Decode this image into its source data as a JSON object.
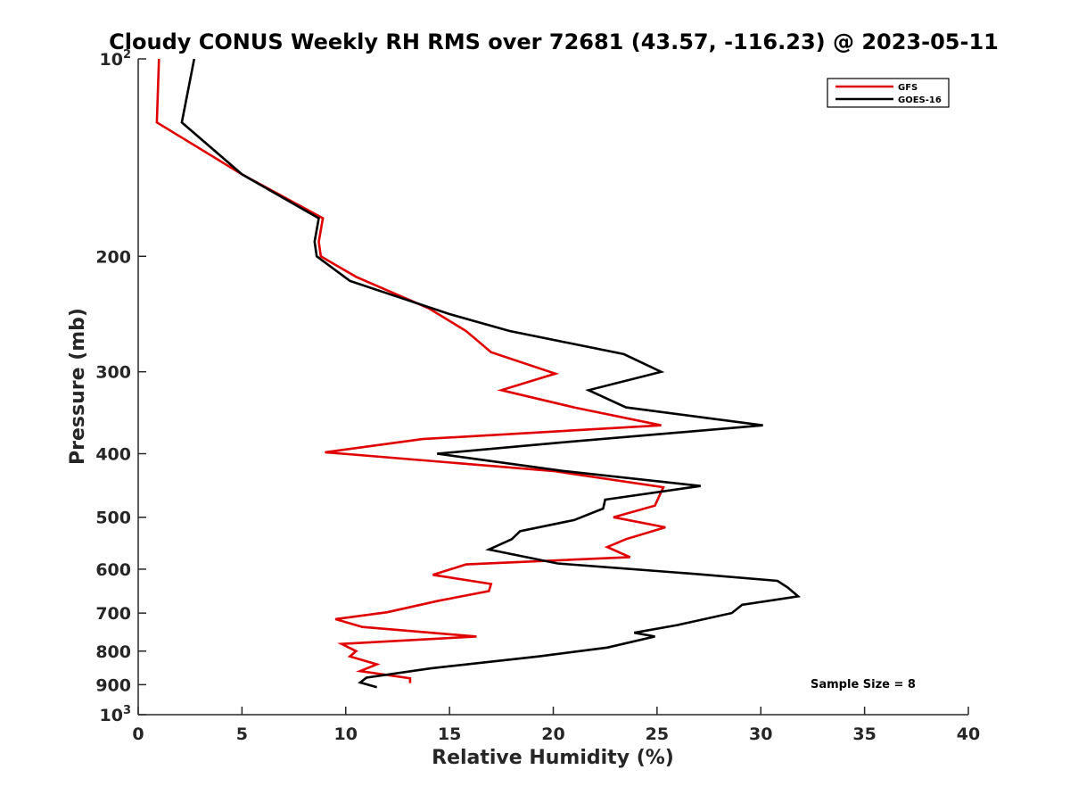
{
  "chart_data": {
    "type": "line",
    "title": "Cloudy CONUS Weekly RH RMS over 72681 (43.57, -116.23) @ 2023-05-11",
    "xlabel": "Relative Humidity (%)",
    "ylabel": "Pressure (mb)",
    "xlim": [
      0,
      40
    ],
    "ylim": [
      100,
      1000
    ],
    "y_scale": "log",
    "y_reversed": true,
    "grid": false,
    "legend_position": "top-right",
    "x_ticks": [
      "0",
      "5",
      "10",
      "15",
      "20",
      "25",
      "30",
      "35",
      "40"
    ],
    "y_ticks": [
      {
        "value": 100,
        "base": "10",
        "exp": "2"
      },
      {
        "value": 200,
        "base": "200",
        "exp": ""
      },
      {
        "value": 300,
        "base": "300",
        "exp": ""
      },
      {
        "value": 400,
        "base": "400",
        "exp": ""
      },
      {
        "value": 500,
        "base": "500",
        "exp": ""
      },
      {
        "value": 600,
        "base": "600",
        "exp": ""
      },
      {
        "value": 700,
        "base": "700",
        "exp": ""
      },
      {
        "value": 800,
        "base": "800",
        "exp": ""
      },
      {
        "value": 900,
        "base": "900",
        "exp": ""
      },
      {
        "value": 1000,
        "base": "10",
        "exp": "3"
      }
    ],
    "annotation": "Sample Size = 8",
    "series": [
      {
        "name": "GFS",
        "color": "#e00000",
        "points": [
          [
            1.0,
            100
          ],
          [
            0.9,
            125
          ],
          [
            5.0,
            150
          ],
          [
            8.9,
            175
          ],
          [
            8.7,
            190
          ],
          [
            8.8,
            200
          ],
          [
            10.5,
            215
          ],
          [
            14.0,
            240
          ],
          [
            15.8,
            260
          ],
          [
            17.0,
            280
          ],
          [
            20.1,
            302
          ],
          [
            17.5,
            320
          ],
          [
            21.0,
            340
          ],
          [
            25.2,
            362
          ],
          [
            13.7,
            380
          ],
          [
            9.0,
            398
          ],
          [
            20.0,
            425
          ],
          [
            25.3,
            450
          ],
          [
            24.9,
            480
          ],
          [
            22.9,
            500
          ],
          [
            25.4,
            518
          ],
          [
            23.5,
            540
          ],
          [
            22.6,
            555
          ],
          [
            23.7,
            575
          ],
          [
            15.8,
            590
          ],
          [
            14.2,
            612
          ],
          [
            17.0,
            632
          ],
          [
            16.9,
            648
          ],
          [
            14.5,
            670
          ],
          [
            12.0,
            698
          ],
          [
            9.5,
            715
          ],
          [
            10.8,
            735
          ],
          [
            16.3,
            760
          ],
          [
            9.8,
            780
          ],
          [
            10.5,
            800
          ],
          [
            10.2,
            815
          ],
          [
            11.5,
            838
          ],
          [
            10.7,
            858
          ],
          [
            13.1,
            880
          ],
          [
            13.1,
            895
          ]
        ]
      },
      {
        "name": "GOES-16",
        "color": "#000000",
        "points": [
          [
            2.7,
            100
          ],
          [
            2.1,
            125
          ],
          [
            5.0,
            150
          ],
          [
            8.7,
            175
          ],
          [
            8.5,
            190
          ],
          [
            8.6,
            200
          ],
          [
            10.2,
            218
          ],
          [
            15.0,
            245
          ],
          [
            17.9,
            260
          ],
          [
            23.4,
            282
          ],
          [
            25.2,
            300
          ],
          [
            21.7,
            320
          ],
          [
            23.5,
            340
          ],
          [
            30.1,
            362
          ],
          [
            20.2,
            385
          ],
          [
            14.4,
            400
          ],
          [
            20.5,
            425
          ],
          [
            27.1,
            448
          ],
          [
            22.5,
            470
          ],
          [
            22.4,
            485
          ],
          [
            21.0,
            505
          ],
          [
            18.4,
            525
          ],
          [
            18.0,
            540
          ],
          [
            16.9,
            560
          ],
          [
            20.2,
            588
          ],
          [
            26.8,
            610
          ],
          [
            30.8,
            625
          ],
          [
            31.3,
            640
          ],
          [
            31.8,
            660
          ],
          [
            29.1,
            680
          ],
          [
            28.6,
            700
          ],
          [
            26.0,
            730
          ],
          [
            23.9,
            750
          ],
          [
            24.9,
            760
          ],
          [
            22.6,
            790
          ],
          [
            19.3,
            815
          ],
          [
            14.1,
            850
          ],
          [
            11.0,
            878
          ],
          [
            10.7,
            893
          ],
          [
            11.5,
            908
          ]
        ]
      }
    ]
  }
}
